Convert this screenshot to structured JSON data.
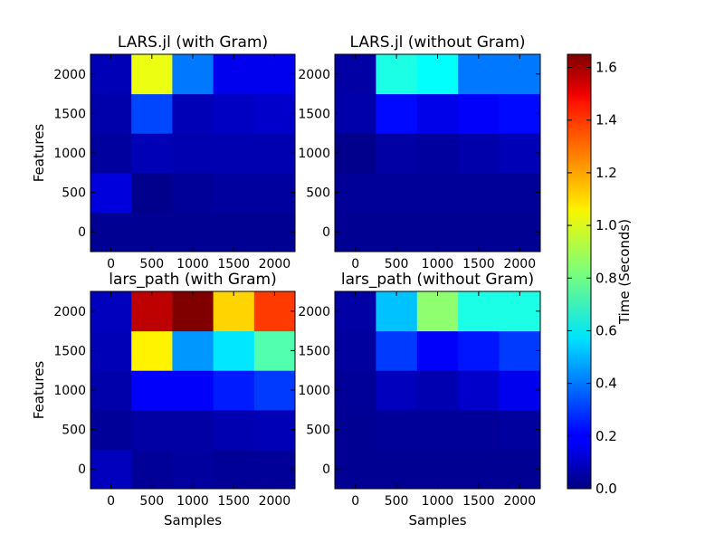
{
  "chart_data": [
    {
      "type": "heatmap",
      "title": "LARS.jl (with Gram)",
      "xlabel": "",
      "ylabel": "Features",
      "x_ticks": [
        "0",
        "500",
        "1000",
        "1500",
        "2000"
      ],
      "y_ticks": [
        "0",
        "500",
        "1000",
        "1500",
        "2000"
      ],
      "values": [
        [
          0.03,
          0.03,
          0.03,
          0.03,
          0.03
        ],
        [
          0.15,
          0.02,
          0.04,
          0.05,
          0.05
        ],
        [
          0.05,
          0.09,
          0.08,
          0.08,
          0.08
        ],
        [
          0.07,
          0.32,
          0.09,
          0.11,
          0.12
        ],
        [
          0.09,
          1.0,
          0.4,
          0.18,
          0.18
        ]
      ]
    },
    {
      "type": "heatmap",
      "title": "LARS.jl (without Gram)",
      "xlabel": "",
      "ylabel": "",
      "x_ticks": [
        "0",
        "500",
        "1000",
        "1500",
        "2000"
      ],
      "y_ticks": [
        "0",
        "500",
        "1000",
        "1500",
        "2000"
      ],
      "values": [
        [
          0.03,
          0.03,
          0.03,
          0.03,
          0.03
        ],
        [
          0.04,
          0.04,
          0.04,
          0.04,
          0.04
        ],
        [
          0.02,
          0.06,
          0.05,
          0.07,
          0.09
        ],
        [
          0.07,
          0.22,
          0.17,
          0.2,
          0.22
        ],
        [
          0.06,
          0.66,
          0.62,
          0.4,
          0.4
        ]
      ]
    },
    {
      "type": "heatmap",
      "title": "lars_path (with Gram)",
      "xlabel": "Samples",
      "ylabel": "Features",
      "x_ticks": [
        "0",
        "500",
        "1000",
        "1500",
        "2000"
      ],
      "y_ticks": [
        "0",
        "500",
        "1000",
        "1500",
        "2000"
      ],
      "values": [
        [
          0.1,
          0.04,
          0.05,
          0.04,
          0.04
        ],
        [
          0.04,
          0.06,
          0.06,
          0.08,
          0.09
        ],
        [
          0.07,
          0.2,
          0.2,
          0.25,
          0.3
        ],
        [
          0.09,
          1.05,
          0.45,
          0.58,
          0.75
        ],
        [
          0.1,
          1.55,
          1.65,
          1.1,
          1.35
        ]
      ]
    },
    {
      "type": "heatmap",
      "title": "lars_path (without Gram)",
      "xlabel": "Samples",
      "ylabel": "",
      "x_ticks": [
        "0",
        "500",
        "1000",
        "1500",
        "2000"
      ],
      "y_ticks": [
        "0",
        "500",
        "1000",
        "1500",
        "2000"
      ],
      "values": [
        [
          0.03,
          0.03,
          0.03,
          0.03,
          0.03
        ],
        [
          0.03,
          0.04,
          0.04,
          0.04,
          0.05
        ],
        [
          0.04,
          0.1,
          0.08,
          0.12,
          0.18
        ],
        [
          0.05,
          0.3,
          0.2,
          0.24,
          0.3
        ],
        [
          0.06,
          0.52,
          0.85,
          0.66,
          0.66
        ]
      ]
    }
  ],
  "colorbar": {
    "label": "Time (Seconds)",
    "min": 0.0,
    "max": 1.65,
    "ticks": [
      "0.0",
      "0.2",
      "0.4",
      "0.6",
      "0.8",
      "1.0",
      "1.2",
      "1.4",
      "1.6"
    ],
    "colormap": "jet"
  }
}
